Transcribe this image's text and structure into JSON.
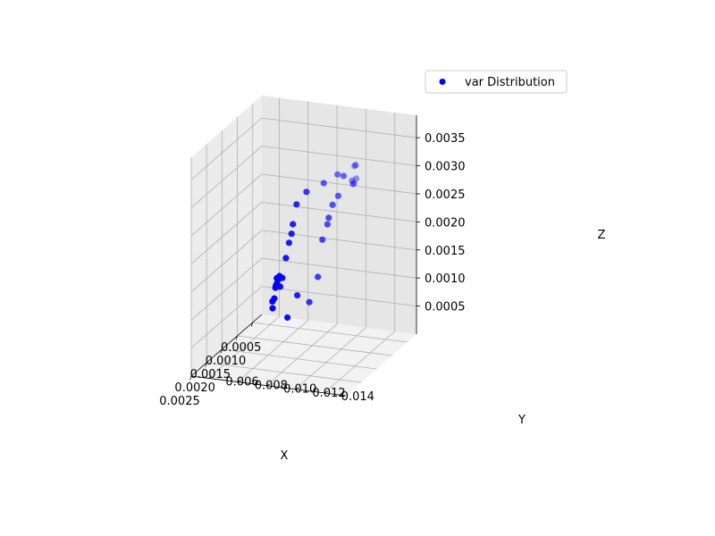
{
  "chart_data": {
    "type": "scatter",
    "projection": "3d",
    "xlabel": "X",
    "ylabel": "Y",
    "zlabel": "Z",
    "xlim": [
      0.0002,
      0.0025
    ],
    "ylim": [
      0.0048,
      0.0155
    ],
    "zlim": [
      0.0,
      0.0039
    ],
    "x_ticks": [
      "0.0005",
      "0.0010",
      "0.0015",
      "0.0020",
      "0.0025"
    ],
    "y_ticks": [
      "0.006",
      "0.008",
      "0.010",
      "0.012",
      "0.014"
    ],
    "z_ticks": [
      "0.0005",
      "0.0010",
      "0.0015",
      "0.0020",
      "0.0025",
      "0.0030",
      "0.0035"
    ],
    "x_tick_values": [
      0.0005,
      0.001,
      0.0015,
      0.002,
      0.0025
    ],
    "y_tick_values": [
      0.006,
      0.008,
      0.01,
      0.012,
      0.014
    ],
    "z_tick_values": [
      0.0005,
      0.001,
      0.0015,
      0.002,
      0.0025,
      0.003,
      0.0035
    ],
    "grid": true,
    "legend_position": "top-right",
    "series": [
      {
        "name": "var Distribution",
        "color": "#0000ff",
        "points": [
          {
            "x": 0.00028,
            "y": 0.0057,
            "z": 0.0003
          },
          {
            "x": 0.00032,
            "y": 0.0058,
            "z": 0.0002
          },
          {
            "x": 0.00031,
            "y": 0.006,
            "z": 0.0006
          },
          {
            "x": 0.00036,
            "y": 0.006,
            "z": 0.0004
          },
          {
            "x": 0.00037,
            "y": 0.0061,
            "z": 0.0006
          },
          {
            "x": 0.00042,
            "y": 0.0063,
            "z": 0.0007
          },
          {
            "x": 0.00042,
            "y": 0.0063,
            "z": 0.0008
          },
          {
            "x": 0.00048,
            "y": 0.0065,
            "z": 0.0008
          },
          {
            "x": 0.0005,
            "y": 0.0067,
            "z": 0.0007
          },
          {
            "x": 0.00052,
            "y": 0.0067,
            "z": 0.0009
          },
          {
            "x": 0.00057,
            "y": 0.007,
            "z": 0.0009
          },
          {
            "x": 0.00064,
            "y": 0.0074,
            "z": 0.0013
          },
          {
            "x": 0.00068,
            "y": 0.0077,
            "z": 0.0016
          },
          {
            "x": 0.00074,
            "y": 0.008,
            "z": 0.0018
          },
          {
            "x": 0.00079,
            "y": 0.0082,
            "z": 0.002
          },
          {
            "x": 0.00086,
            "y": 0.0086,
            "z": 0.0024
          },
          {
            "x": 0.00096,
            "y": 0.0095,
            "z": 0.0027
          },
          {
            "x": 0.00115,
            "y": 0.0111,
            "z": 0.003
          },
          {
            "x": 0.00136,
            "y": 0.0125,
            "z": 0.0033
          },
          {
            "x": 0.0015,
            "y": 0.0138,
            "z": 0.0033
          },
          {
            "x": 0.00152,
            "y": 0.0141,
            "z": 0.0036
          },
          {
            "x": 0.00156,
            "y": 0.0141,
            "z": 0.0036
          },
          {
            "x": 0.00158,
            "y": 0.0141,
            "z": 0.0033
          },
          {
            "x": 0.0016,
            "y": 0.0143,
            "z": 0.0034
          },
          {
            "x": 0.00161,
            "y": 0.0141,
            "z": 0.0033
          },
          {
            "x": 0.00111,
            "y": 0.0085,
            "z": 0.0005
          },
          {
            "x": 0.00126,
            "y": 0.0095,
            "z": 0.001
          },
          {
            "x": 0.00143,
            "y": 0.0107,
            "z": 0.001
          },
          {
            "x": 0.00167,
            "y": 0.0118,
            "z": 0.0016
          },
          {
            "x": 0.0019,
            "y": 0.0126,
            "z": 0.0024
          },
          {
            "x": 0.00211,
            "y": 0.0134,
            "z": 0.0028
          },
          {
            "x": 0.00226,
            "y": 0.0138,
            "z": 0.003
          },
          {
            "x": 0.00237,
            "y": 0.0143,
            "z": 0.0033
          },
          {
            "x": 0.00242,
            "y": 0.0148,
            "z": 0.0035
          },
          {
            "x": 0.00248,
            "y": 0.0153,
            "z": 0.0039
          }
        ]
      }
    ]
  }
}
